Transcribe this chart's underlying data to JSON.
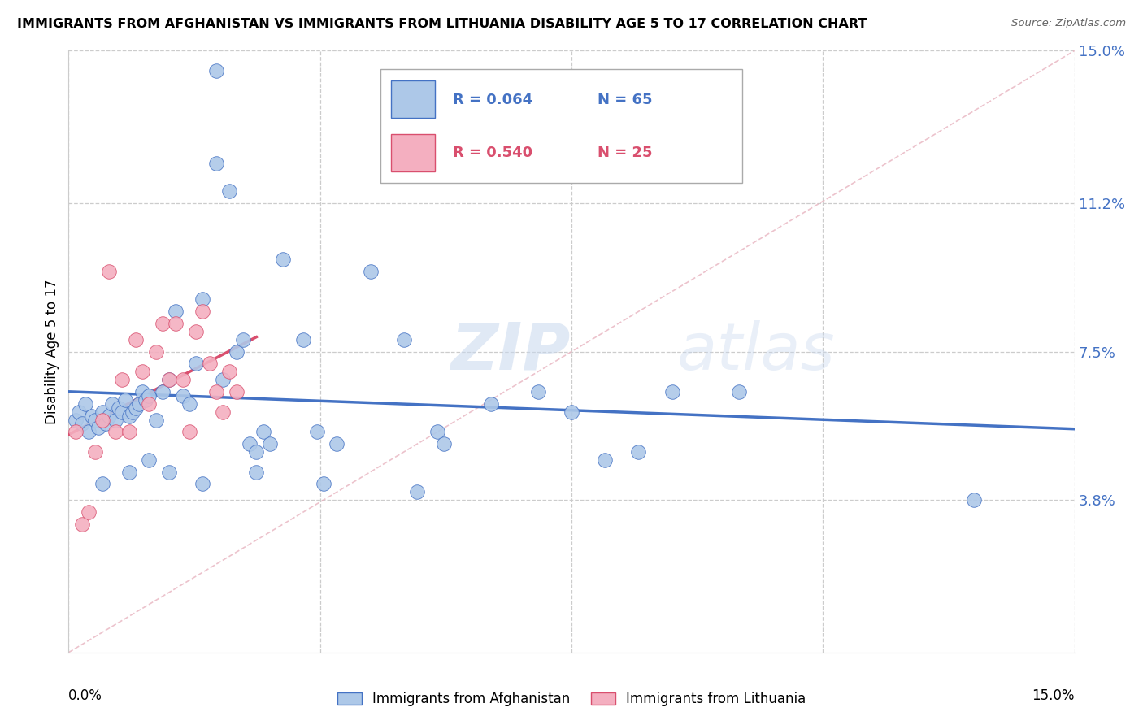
{
  "title": "IMMIGRANTS FROM AFGHANISTAN VS IMMIGRANTS FROM LITHUANIA DISABILITY AGE 5 TO 17 CORRELATION CHART",
  "source": "Source: ZipAtlas.com",
  "ylabel": "Disability Age 5 to 17",
  "xlim": [
    0.0,
    15.0
  ],
  "ylim": [
    0.0,
    15.0
  ],
  "ytick_labels": [
    "3.8%",
    "7.5%",
    "11.2%",
    "15.0%"
  ],
  "ytick_values": [
    3.8,
    7.5,
    11.2,
    15.0
  ],
  "xtick_values": [
    0.0,
    3.75,
    7.5,
    11.25,
    15.0
  ],
  "legend_r1": "R = 0.064",
  "legend_n1": "N = 65",
  "legend_r2": "R = 0.540",
  "legend_n2": "N = 25",
  "color_afghanistan": "#adc8e8",
  "color_lithuania": "#f4afc0",
  "color_line_afghanistan": "#4472c4",
  "color_line_lithuania": "#d94f6e",
  "color_diagonal": "#e8b4c0",
  "watermark_zip": "ZIP",
  "watermark_atlas": "atlas",
  "label_afghanistan": "Immigrants from Afghanistan",
  "label_lithuania": "Immigrants from Lithuania",
  "afg_x": [
    2.2,
    2.2,
    2.4,
    0.1,
    0.15,
    0.2,
    0.25,
    0.3,
    0.35,
    0.4,
    0.45,
    0.5,
    0.55,
    0.6,
    0.65,
    0.7,
    0.75,
    0.8,
    0.85,
    0.9,
    0.95,
    1.0,
    1.05,
    1.1,
    1.15,
    1.2,
    1.3,
    1.4,
    1.5,
    1.6,
    1.7,
    1.8,
    1.9,
    2.0,
    2.3,
    2.5,
    2.6,
    2.7,
    2.8,
    2.9,
    3.0,
    3.2,
    3.5,
    3.7,
    4.0,
    4.5,
    5.0,
    5.5,
    5.6,
    6.3,
    7.0,
    7.5,
    8.0,
    8.5,
    9.0,
    10.0,
    13.5,
    0.5,
    0.9,
    1.2,
    1.5,
    2.0,
    2.8,
    3.8,
    5.2
  ],
  "afg_y": [
    14.5,
    12.2,
    11.5,
    5.8,
    6.0,
    5.7,
    6.2,
    5.5,
    5.9,
    5.8,
    5.6,
    6.0,
    5.7,
    5.9,
    6.2,
    5.8,
    6.1,
    6.0,
    6.3,
    5.9,
    6.0,
    6.1,
    6.2,
    6.5,
    6.3,
    6.4,
    5.8,
    6.5,
    6.8,
    8.5,
    6.4,
    6.2,
    7.2,
    8.8,
    6.8,
    7.5,
    7.8,
    5.2,
    5.0,
    5.5,
    5.2,
    9.8,
    7.8,
    5.5,
    5.2,
    9.5,
    7.8,
    5.5,
    5.2,
    6.2,
    6.5,
    6.0,
    4.8,
    5.0,
    6.5,
    6.5,
    3.8,
    4.2,
    4.5,
    4.8,
    4.5,
    4.2,
    4.5,
    4.2,
    4.0
  ],
  "lith_x": [
    0.1,
    0.2,
    0.3,
    0.4,
    0.5,
    0.6,
    0.7,
    0.8,
    0.9,
    1.0,
    1.1,
    1.2,
    1.3,
    1.4,
    1.5,
    1.6,
    1.7,
    1.8,
    1.9,
    2.0,
    2.1,
    2.2,
    2.3,
    2.4,
    2.5
  ],
  "lith_y": [
    5.5,
    3.2,
    3.5,
    5.0,
    5.8,
    9.5,
    5.5,
    6.8,
    5.5,
    7.8,
    7.0,
    6.2,
    7.5,
    8.2,
    6.8,
    8.2,
    6.8,
    5.5,
    8.0,
    8.5,
    7.2,
    6.5,
    6.0,
    7.0,
    6.5
  ]
}
